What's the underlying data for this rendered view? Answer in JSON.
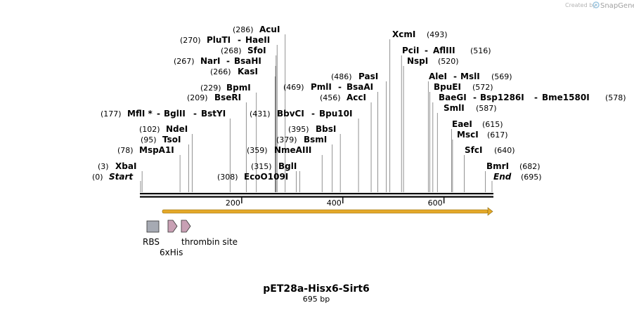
{
  "credit": {
    "created_by": "Created by",
    "brand": "SnapGene",
    "logo_icon": "snapgene-logo-icon"
  },
  "map": {
    "name": "pET28a-Hisx6-Sirt6",
    "length_label": "695 bp",
    "length_bp": 695,
    "ticks": [
      {
        "bp": 200,
        "label": "200"
      },
      {
        "bp": 400,
        "label": "400"
      },
      {
        "bp": 600,
        "label": "600"
      }
    ],
    "sites": [
      {
        "pos": 0,
        "pos_label": "(0)",
        "names": [
          "Start"
        ],
        "italic": true
      },
      {
        "pos": 3,
        "pos_label": "(3)",
        "names": [
          "XbaI"
        ]
      },
      {
        "pos": 78,
        "pos_label": "(78)",
        "names": [
          "MspA1I"
        ]
      },
      {
        "pos": 95,
        "pos_label": "(95)",
        "names": [
          "TsoI"
        ]
      },
      {
        "pos": 102,
        "pos_label": "(102)",
        "names": [
          "NdeI"
        ]
      },
      {
        "pos": 177,
        "pos_label": "(177)",
        "names": [
          "MflI *",
          "BglII",
          "BstYI"
        ]
      },
      {
        "pos": 209,
        "pos_label": "(209)",
        "names": [
          "BseRI"
        ]
      },
      {
        "pos": 229,
        "pos_label": "(229)",
        "names": [
          "BpmI"
        ]
      },
      {
        "pos": 266,
        "pos_label": "(266)",
        "names": [
          "KasI"
        ]
      },
      {
        "pos": 267,
        "pos_label": "(267)",
        "names": [
          "NarI",
          "BsaHI"
        ]
      },
      {
        "pos": 268,
        "pos_label": "(268)",
        "names": [
          "SfoI"
        ]
      },
      {
        "pos": 270,
        "pos_label": "(270)",
        "names": [
          "PluTI",
          "HaeII"
        ]
      },
      {
        "pos": 286,
        "pos_label": "(286)",
        "names": [
          "AcuI"
        ]
      },
      {
        "pos": 308,
        "pos_label": "(308)",
        "names": [
          "EcoO109I"
        ]
      },
      {
        "pos": 315,
        "pos_label": "(315)",
        "names": [
          "BglI"
        ]
      },
      {
        "pos": 359,
        "pos_label": "(359)",
        "names": [
          "NmeAIII"
        ]
      },
      {
        "pos": 379,
        "pos_label": "(379)",
        "names": [
          "BsmI"
        ]
      },
      {
        "pos": 395,
        "pos_label": "(395)",
        "names": [
          "BbsI"
        ]
      },
      {
        "pos": 431,
        "pos_label": "(431)",
        "names": [
          "BbvCI",
          "Bpu10I"
        ]
      },
      {
        "pos": 456,
        "pos_label": "(456)",
        "names": [
          "AccI"
        ]
      },
      {
        "pos": 469,
        "pos_label": "(469)",
        "names": [
          "PmlI",
          "BsaAI"
        ]
      },
      {
        "pos": 486,
        "pos_label": "(486)",
        "names": [
          "PasI"
        ]
      },
      {
        "pos": 493,
        "pos_label": "(493)",
        "names": [
          "XcmI"
        ]
      },
      {
        "pos": 516,
        "pos_label": "(516)",
        "names": [
          "PciI",
          "AflIII"
        ]
      },
      {
        "pos": 520,
        "pos_label": "(520)",
        "names": [
          "NspI"
        ]
      },
      {
        "pos": 569,
        "pos_label": "(569)",
        "names": [
          "AleI",
          "MslI"
        ]
      },
      {
        "pos": 572,
        "pos_label": "(572)",
        "names": [
          "BpuEI"
        ]
      },
      {
        "pos": 578,
        "pos_label": "(578)",
        "names": [
          "BaeGI",
          "Bsp1286I",
          "Bme1580I"
        ]
      },
      {
        "pos": 587,
        "pos_label": "(587)",
        "names": [
          "SmlI"
        ]
      },
      {
        "pos": 615,
        "pos_label": "(615)",
        "names": [
          "EaeI"
        ]
      },
      {
        "pos": 617,
        "pos_label": "(617)",
        "names": [
          "MscI"
        ]
      },
      {
        "pos": 640,
        "pos_label": "(640)",
        "names": [
          "SfcI"
        ]
      },
      {
        "pos": 682,
        "pos_label": "(682)",
        "names": [
          "BmrI"
        ]
      },
      {
        "pos": 695,
        "pos_label": "(695)",
        "names": [
          "End"
        ],
        "italic": true
      }
    ],
    "features": [
      {
        "name": "RBS",
        "type": "rbs",
        "color": "#a6aab3"
      },
      {
        "name": "6xHis",
        "type": "tag",
        "color": "#c8a0b4"
      },
      {
        "name": "thrombin site",
        "type": "site",
        "color": "#c8a0b4"
      }
    ],
    "orf_color": "#e4a828"
  }
}
